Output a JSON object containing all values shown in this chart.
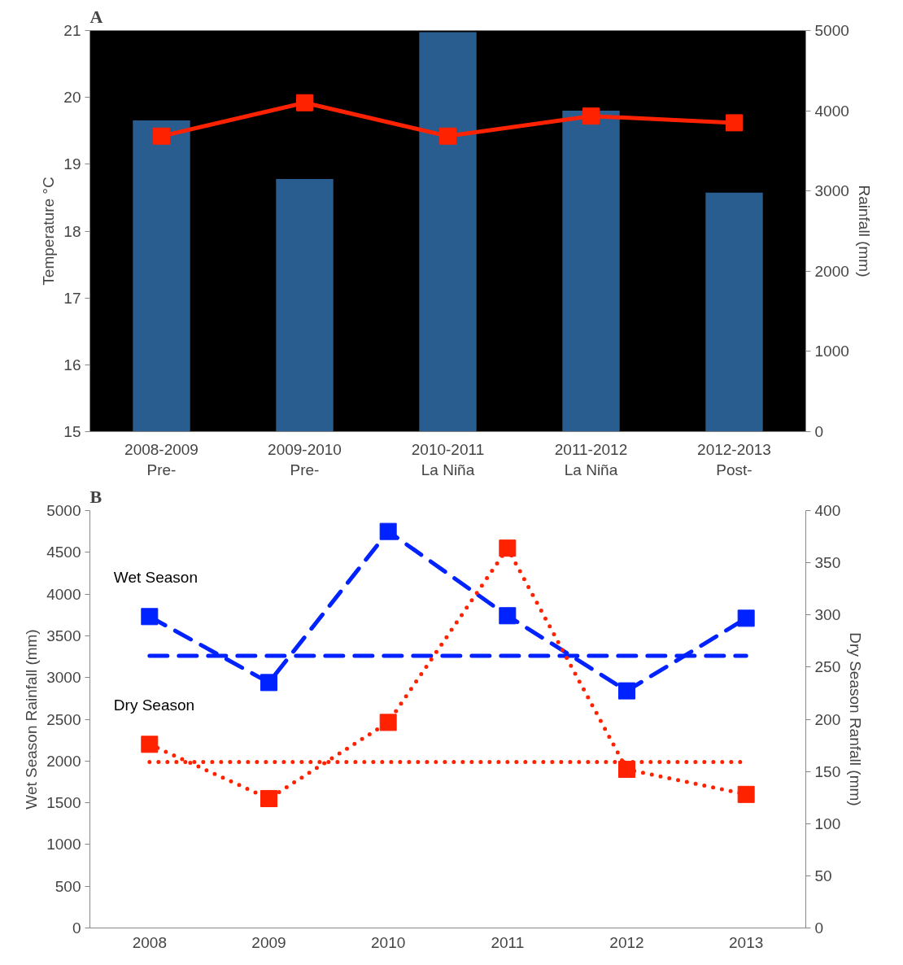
{
  "chart_data": [
    {
      "type": "bar",
      "title": "A",
      "categories": [
        "2008-2009\nPre-",
        "2009-2010\nPre-",
        "2010-2011\nLa Niña",
        "2011-2012\nLa Niña",
        "2012-2013\nPost-"
      ],
      "ylabel": "Temperature °C",
      "y2label": "Rainfall (mm)",
      "ylim": [
        15,
        21
      ],
      "yticks": [
        15,
        16,
        17,
        18,
        19,
        20,
        21
      ],
      "y2lim": [
        0,
        5000
      ],
      "y2ticks": [
        0,
        1000,
        2000,
        3000,
        4000,
        5000
      ],
      "series": [
        {
          "type": "bar",
          "axis": "y2",
          "color": "#2a5d8f",
          "values": [
            3880,
            3150,
            4980,
            4000,
            2980
          ]
        },
        {
          "type": "line",
          "color": "#ff2200",
          "marker": "square",
          "line_style": "solid",
          "values": [
            19.42,
            19.92,
            19.42,
            19.72,
            19.62
          ]
        }
      ]
    },
    {
      "type": "line",
      "title": "B",
      "categories": [
        "2008",
        "2009",
        "2010",
        "2011",
        "2012",
        "2013"
      ],
      "ylabel": "Wet Season Rainfall (mm)",
      "y2label": "Dry Season Ranfall (mm)",
      "ylim": [
        0,
        5000
      ],
      "yticks": [
        0,
        500,
        1000,
        1500,
        2000,
        2500,
        3000,
        3500,
        4000,
        4500,
        5000
      ],
      "y2lim": [
        0,
        400
      ],
      "y2ticks": [
        0,
        50,
        100,
        150,
        200,
        250,
        300,
        350,
        400
      ],
      "series": [
        {
          "name": "Wet Season",
          "color": "#0022ff",
          "marker": "square",
          "line_style": "dashed",
          "values": [
            3730,
            2940,
            4750,
            3740,
            2840,
            3710
          ]
        },
        {
          "name": "Dry Season",
          "color": "#ff2200",
          "marker": "square",
          "line_style": "dotted",
          "axis": "y2",
          "values": [
            176,
            124,
            197,
            364,
            152,
            128
          ]
        }
      ],
      "ref_lines": [
        {
          "axis": "y",
          "value": 3260,
          "color": "#0022ff",
          "line_style": "dashed"
        },
        {
          "axis": "y2",
          "value": 159,
          "color": "#ff2200",
          "line_style": "dotted"
        }
      ]
    }
  ]
}
